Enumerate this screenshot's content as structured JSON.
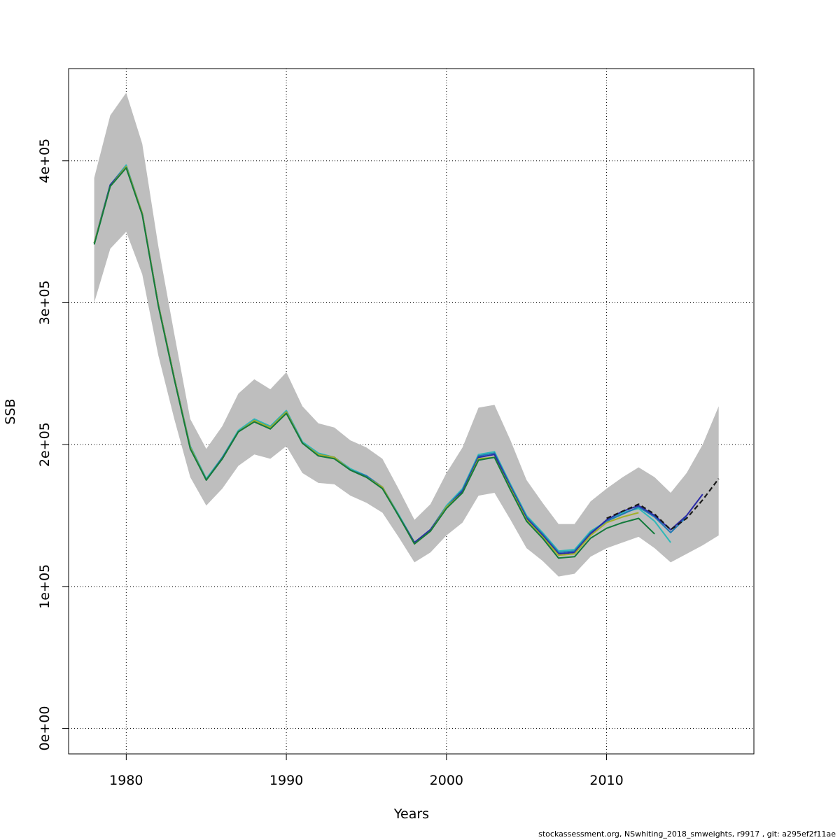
{
  "chart_data": {
    "type": "line",
    "title": "",
    "xlabel": "Years",
    "ylabel": "SSB",
    "xlim": [
      1976.4,
      2019.2
    ],
    "ylim": [
      -18000,
      465000
    ],
    "x_ticks": [
      {
        "value": 1980,
        "label": "1980"
      },
      {
        "value": 1990,
        "label": "1990"
      },
      {
        "value": 2000,
        "label": "2000"
      },
      {
        "value": 2010,
        "label": "2010"
      }
    ],
    "y_ticks": [
      {
        "value": 0,
        "label": "0e+00"
      },
      {
        "value": 100000,
        "label": "1e+05"
      },
      {
        "value": 200000,
        "label": "2e+05"
      },
      {
        "value": 300000,
        "label": "3e+05"
      },
      {
        "value": 400000,
        "label": "4e+05"
      }
    ],
    "grid": true,
    "band": {
      "color": "#bebebe",
      "x": [
        1978,
        1979,
        1980,
        1981,
        1982,
        1983,
        1984,
        1985,
        1986,
        1987,
        1988,
        1989,
        1990,
        1991,
        1992,
        1993,
        1994,
        1995,
        1996,
        1997,
        1998,
        1999,
        2000,
        2001,
        2002,
        2003,
        2004,
        2005,
        2006,
        2007,
        2008,
        2009,
        2010,
        2011,
        2012,
        2013,
        2014,
        2015,
        2016,
        2017
      ],
      "upper": [
        388000,
        432000,
        448000,
        412000,
        340000,
        278000,
        218000,
        197000,
        213000,
        236000,
        246000,
        239000,
        251000,
        227000,
        215000,
        212000,
        203000,
        198000,
        190000,
        169000,
        147000,
        158000,
        180000,
        198000,
        226000,
        228000,
        203000,
        175000,
        159000,
        144000,
        144000,
        160000,
        169000,
        177000,
        184000,
        177000,
        166000,
        180000,
        200000,
        227000
      ],
      "lower": [
        300000,
        338000,
        350000,
        320000,
        263000,
        218000,
        177000,
        157000,
        169000,
        185000,
        193000,
        190000,
        199000,
        180000,
        173000,
        172000,
        164000,
        159000,
        152000,
        135000,
        117000,
        124000,
        136000,
        145000,
        164000,
        166000,
        147000,
        127000,
        118000,
        107000,
        109000,
        121000,
        127000,
        131000,
        135000,
        127000,
        117000,
        123000,
        129000,
        136000
      ]
    },
    "series": [
      {
        "color": "#2eb8b8",
        "dash": false,
        "x": [
          1978,
          1979,
          1980,
          1981,
          1982,
          1983,
          1984,
          1985,
          1986,
          1987,
          1988,
          1989,
          1990,
          1991,
          1992,
          1993,
          1994,
          1995,
          1996,
          1997,
          1998,
          1999,
          2000,
          2001,
          2002,
          2003,
          2004,
          2005,
          2006,
          2007,
          2008,
          2009,
          2010,
          2011,
          2012,
          2013,
          2014
        ],
        "values": [
          342000,
          383000,
          397000,
          363000,
          299000,
          247000,
          199000,
          176000,
          191000,
          210000,
          218000,
          213000,
          224000,
          202000,
          194000,
          191000,
          183000,
          178000,
          170000,
          151000,
          131000,
          140000,
          157000,
          169000,
          193000,
          195000,
          172000,
          150000,
          138000,
          125000,
          126000,
          139000,
          146000,
          152000,
          155000,
          146000,
          131000
        ]
      },
      {
        "color": "#1f78b4",
        "dash": false,
        "x": [
          1978,
          1979,
          1980,
          1981,
          1982,
          1983,
          1984,
          1985,
          1986,
          1987,
          1988,
          1989,
          1990,
          1991,
          1992,
          1993,
          1994,
          1995,
          1996,
          1997,
          1998,
          1999,
          2000,
          2001,
          2002,
          2003,
          2004,
          2005,
          2006,
          2007,
          2008,
          2009,
          2010,
          2011,
          2012,
          2013,
          2014,
          2015
        ],
        "values": [
          342000,
          383000,
          396000,
          363000,
          299000,
          247000,
          198000,
          175000,
          191000,
          209000,
          217000,
          212000,
          223000,
          201000,
          193000,
          191000,
          182000,
          178000,
          170000,
          150000,
          131000,
          140000,
          156000,
          168000,
          192000,
          194000,
          171000,
          149000,
          137000,
          124000,
          125000,
          138000,
          146000,
          151000,
          156000,
          149000,
          138000,
          149000
        ]
      },
      {
        "color": "#2a2aa8",
        "dash": false,
        "x": [
          1978,
          1979,
          1980,
          1981,
          1982,
          1983,
          1984,
          1985,
          1986,
          1987,
          1988,
          1989,
          1990,
          1991,
          1992,
          1993,
          1994,
          1995,
          1996,
          1997,
          1998,
          1999,
          2000,
          2001,
          2002,
          2003,
          2004,
          2005,
          2006,
          2007,
          2008,
          2009,
          2010,
          2011,
          2012,
          2013,
          2014,
          2015,
          2016
        ],
        "values": [
          342000,
          383000,
          396000,
          363000,
          299000,
          247000,
          198000,
          175000,
          190000,
          209000,
          217000,
          212000,
          223000,
          201000,
          193000,
          191000,
          182000,
          177000,
          170000,
          150000,
          131000,
          140000,
          156000,
          167000,
          191000,
          193000,
          170000,
          148000,
          136000,
          123000,
          124000,
          137000,
          147000,
          153000,
          157000,
          150000,
          140000,
          150000,
          165000
        ]
      },
      {
        "color": "#a3b02a",
        "dash": false,
        "x": [
          1978,
          1979,
          1980,
          1981,
          1982,
          1983,
          1984,
          1985,
          1986,
          1987,
          1988,
          1989,
          1990,
          1991,
          1992,
          1993,
          1994,
          1995,
          1996,
          1997,
          1998,
          1999,
          2000,
          2001,
          2002,
          2003,
          2004,
          2005,
          2006,
          2007,
          2008,
          2009,
          2010,
          2011,
          2012
        ],
        "values": [
          342000,
          382000,
          396000,
          363000,
          299000,
          247000,
          198000,
          175000,
          190000,
          209000,
          217000,
          212000,
          223000,
          201000,
          193000,
          191000,
          182000,
          177000,
          170000,
          150000,
          130000,
          139000,
          156000,
          166000,
          190000,
          191000,
          169000,
          147000,
          135000,
          122000,
          123000,
          136000,
          145000,
          149000,
          152000
        ]
      },
      {
        "color": "#137a3c",
        "dash": false,
        "x": [
          1978,
          1979,
          1980,
          1981,
          1982,
          1983,
          1984,
          1985,
          1986,
          1987,
          1988,
          1989,
          1990,
          1991,
          1992,
          1993,
          1994,
          1995,
          1996,
          1997,
          1998,
          1999,
          2000,
          2001,
          2002,
          2003,
          2004,
          2005,
          2006,
          2007,
          2008,
          2009,
          2010,
          2011,
          2012,
          2013
        ],
        "values": [
          341000,
          382000,
          395000,
          362000,
          298000,
          246000,
          197000,
          175000,
          190000,
          209000,
          216000,
          211000,
          222000,
          201000,
          192000,
          190000,
          182000,
          177000,
          169000,
          150000,
          130000,
          139000,
          155000,
          166000,
          189000,
          191000,
          168000,
          146000,
          134000,
          120000,
          121000,
          134000,
          141000,
          145000,
          148000,
          137000
        ]
      },
      {
        "color": "#1a1a1a",
        "dash": true,
        "x": [
          2010,
          2011,
          2012,
          2013,
          2014,
          2015,
          2016,
          2017
        ],
        "values": [
          148000,
          153000,
          158000,
          151000,
          140000,
          148000,
          161000,
          176000
        ]
      }
    ]
  },
  "footer_text": "stockassessment.org, NSwhiting_2018_smweights, r9917 , git: a295ef2f11ae"
}
